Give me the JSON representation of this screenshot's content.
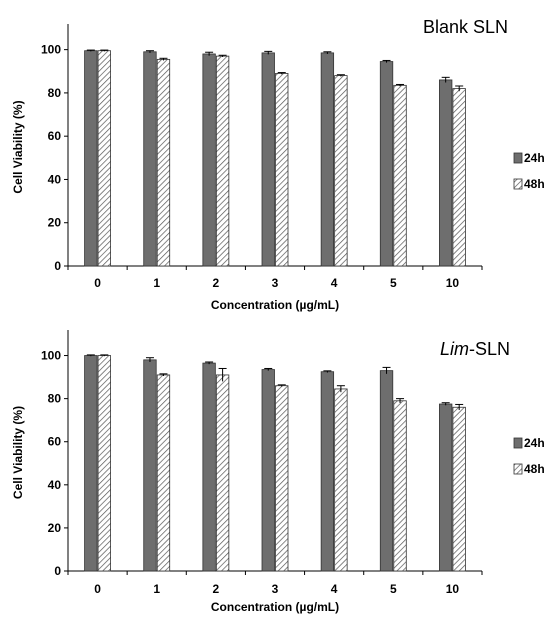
{
  "chart_data": [
    {
      "type": "bar",
      "title": "Blank SLN",
      "title_parts": [
        {
          "text": "Blank SLN",
          "italic": false
        }
      ],
      "xlabel": "Concentration (µg/mL)",
      "ylabel": "Cell Viability (%)",
      "categories": [
        "0",
        "1",
        "2",
        "3",
        "4",
        "5",
        "10"
      ],
      "ylim": [
        0,
        110
      ],
      "yticks": [
        "0",
        "20",
        "40",
        "60",
        "80",
        "100"
      ],
      "series": [
        {
          "name": "24h",
          "values": [
            99.5,
            99.0,
            98.0,
            98.5,
            98.5,
            94.5,
            86.0
          ],
          "errors": [
            0.3,
            0.5,
            0.8,
            0.7,
            0.5,
            0.5,
            1.2
          ]
        },
        {
          "name": "48h",
          "values": [
            99.5,
            95.5,
            97.0,
            89.0,
            88.0,
            83.5,
            82.0
          ],
          "errors": [
            0.3,
            0.5,
            0.4,
            0.4,
            0.4,
            0.4,
            1.2
          ]
        }
      ],
      "legend_position": "right",
      "grid": false
    },
    {
      "type": "bar",
      "title": "Lim-SLN",
      "title_parts": [
        {
          "text": "Lim",
          "italic": true
        },
        {
          "text": "-SLN",
          "italic": false
        }
      ],
      "xlabel": "Concentration (µg/mL)",
      "ylabel": "Cell Viability (%)",
      "categories": [
        "0",
        "1",
        "2",
        "3",
        "4",
        "5",
        "10"
      ],
      "ylim": [
        0,
        110
      ],
      "yticks": [
        "0",
        "20",
        "40",
        "60",
        "80",
        "100"
      ],
      "series": [
        {
          "name": "24h",
          "values": [
            100.0,
            98.0,
            96.5,
            93.5,
            92.5,
            93.0,
            77.5
          ],
          "errors": [
            0.3,
            1.0,
            0.5,
            0.5,
            0.4,
            1.5,
            0.6
          ]
        },
        {
          "name": "48h",
          "values": [
            100.0,
            91.0,
            91.0,
            86.0,
            84.5,
            79.0,
            76.0
          ],
          "errors": [
            0.3,
            0.5,
            3.0,
            0.4,
            1.5,
            1.0,
            1.3
          ]
        }
      ],
      "legend_position": "right",
      "grid": false
    }
  ],
  "colors": {
    "bar_24h_fill": "#6e6e6e",
    "bar_48h_fill": "#ffffff",
    "bar_48h_hatch": "#555555",
    "axis": "#000000"
  }
}
